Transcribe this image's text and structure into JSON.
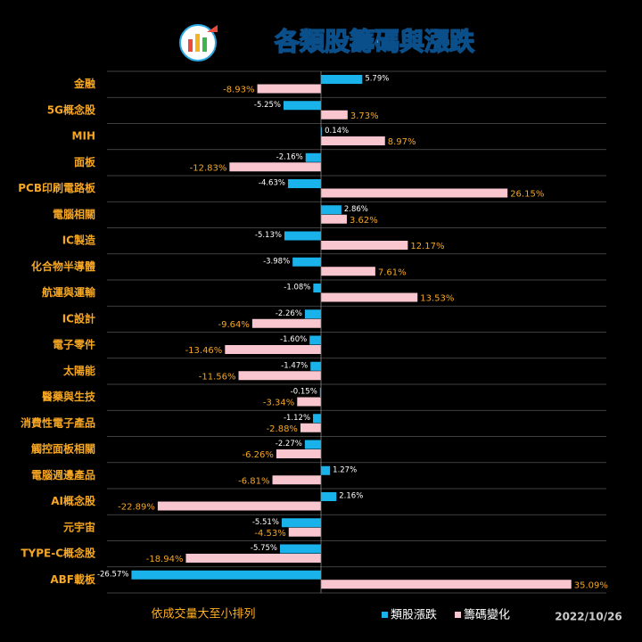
{
  "chart_data": {
    "type": "hbar",
    "title": "各類股籌碼與漲跌",
    "note": "依成交量大至小排列",
    "date": "2022/10/26",
    "categories": [
      "金融",
      "5G概念股",
      "MIH",
      "面板",
      "PCB印刷電路板",
      "電腦相關",
      "IC製造",
      "化合物半導體",
      "航運與運輸",
      "IC設計",
      "電子零件",
      "太陽能",
      "醫藥與生技",
      "消費性電子產品",
      "觸控面板相關",
      "電腦週邊產品",
      "AI概念股",
      "元宇宙",
      "TYPE-C概念股",
      "ABF載板"
    ],
    "series": [
      {
        "name": "類股漲跌",
        "color": "#1ab2ea",
        "values": [
          5.79,
          -5.25,
          0.14,
          -2.16,
          -4.63,
          2.86,
          -5.13,
          -3.98,
          -1.08,
          -2.26,
          -1.6,
          -1.47,
          -0.15,
          -1.12,
          -2.27,
          1.27,
          2.16,
          -5.51,
          -5.75,
          -26.57
        ],
        "value_labels": [
          "5.79%",
          "-5.25%",
          "0.14%",
          "-2.16%",
          "-4.63%",
          "2.86%",
          "-5.13%",
          "-3.98%",
          "-1.08%",
          "-2.26%",
          "-1.60%",
          "-1.47%",
          "-0.15%",
          "-1.12%",
          "-2.27%",
          "1.27%",
          "2.16%",
          "-5.51%",
          "-5.75%",
          "-26.57%"
        ]
      },
      {
        "name": "籌碼變化",
        "color": "#f9c6d0",
        "values": [
          -8.93,
          3.73,
          8.97,
          -12.83,
          26.15,
          3.62,
          12.17,
          7.61,
          13.53,
          -9.64,
          -13.46,
          -11.56,
          -3.34,
          -2.88,
          -6.26,
          -6.81,
          -22.89,
          -4.53,
          -18.94,
          35.09
        ],
        "value_labels": [
          "-8.93%",
          "3.73%",
          "8.97%",
          "-12.83%",
          "26.15%",
          "3.62%",
          "12.17%",
          "7.61%",
          "13.53%",
          "-9.64%",
          "-13.46%",
          "-11.56%",
          "-3.34%",
          "-2.88%",
          "-6.26%",
          "-6.81%",
          "-22.89%",
          "-4.53%",
          "-18.94%",
          "35.09%"
        ]
      }
    ],
    "xlim": [
      -30,
      40
    ]
  }
}
